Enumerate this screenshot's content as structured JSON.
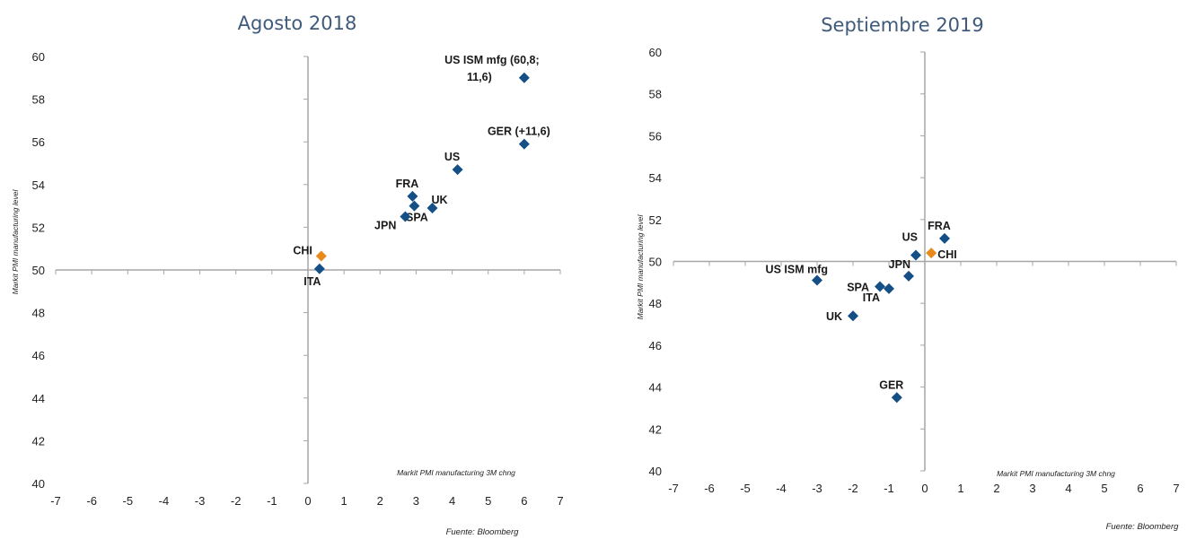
{
  "chart_data": [
    {
      "type": "scatter",
      "title": "Agosto 2018",
      "xlabel": "Markit PMI manufacturing 3M chng",
      "ylabel": "Markit PMI manufacturing level",
      "source": "Fuente: Bloomberg",
      "xlim": [
        -7,
        7
      ],
      "ylim": [
        40,
        60
      ],
      "xticks": [
        "-7",
        "-6",
        "-5",
        "-4",
        "-3",
        "-2",
        "-1",
        "0",
        "1",
        "2",
        "3",
        "4",
        "5",
        "6",
        "7"
      ],
      "yticks": [
        "40",
        "42",
        "44",
        "46",
        "48",
        "50",
        "52",
        "54",
        "56",
        "58",
        "60"
      ],
      "grid": false,
      "colors": {
        "default": "#144f86",
        "highlight": "#e8891c",
        "title": "#3f5a7a"
      },
      "points": [
        {
          "label": "US ISM mfg (60,8;",
          "label2": "11,6)",
          "x": 6.0,
          "y": 59.0,
          "highlight": false,
          "lp": "ul"
        },
        {
          "label": "GER (+11,6)",
          "x": 6.0,
          "y": 55.9,
          "highlight": false,
          "lp": "above"
        },
        {
          "label": "US",
          "x": 4.15,
          "y": 54.7,
          "highlight": false,
          "lp": "above"
        },
        {
          "label": "FRA",
          "x": 2.9,
          "y": 53.45,
          "highlight": false,
          "lp": "above"
        },
        {
          "label": "SPA",
          "x": 2.95,
          "y": 53.0,
          "highlight": false,
          "lp": "sbelow"
        },
        {
          "label": "UK",
          "x": 3.45,
          "y": 52.9,
          "highlight": false,
          "lp": "ur"
        },
        {
          "label": "JPN",
          "x": 2.7,
          "y": 52.5,
          "highlight": false,
          "lp": "bl"
        },
        {
          "label": "CHI",
          "x": 0.37,
          "y": 50.65,
          "highlight": true,
          "lp": "ul"
        },
        {
          "label": "ITA",
          "x": 0.32,
          "y": 50.05,
          "highlight": false,
          "lp": "below"
        }
      ]
    },
    {
      "type": "scatter",
      "title": "Septiembre 2019",
      "xlabel": "Markit PMI manufacturing 3M chng",
      "ylabel": "Markit PMI manufacturing level",
      "source": "Fuente: Bloomberg",
      "xlim": [
        -7,
        7
      ],
      "ylim": [
        40,
        60
      ],
      "xticks": [
        "-7",
        "-6",
        "-5",
        "-4",
        "-3",
        "-2",
        "-1",
        "0",
        "1",
        "2",
        "3",
        "4",
        "5",
        "6",
        "7"
      ],
      "yticks": [
        "40",
        "42",
        "44",
        "46",
        "48",
        "50",
        "52",
        "54",
        "56",
        "58",
        "60"
      ],
      "grid": false,
      "colors": {
        "default": "#144f86",
        "highlight": "#e8891c",
        "title": "#3f5a7a"
      },
      "points": [
        {
          "label": "FRA",
          "x": 0.55,
          "y": 51.1,
          "highlight": false,
          "lp": "above"
        },
        {
          "label": "CHI",
          "x": 0.18,
          "y": 50.4,
          "highlight": true,
          "lp": "right"
        },
        {
          "label": "US",
          "x": -0.25,
          "y": 50.3,
          "highlight": false,
          "lp": "ul"
        },
        {
          "label": "JPN",
          "x": -0.45,
          "y": 49.3,
          "highlight": false,
          "lp": "ul"
        },
        {
          "label": "US ISM mfg",
          "x": -3.0,
          "y": 49.1,
          "highlight": false,
          "lp": "ul"
        },
        {
          "label": "SPA",
          "x": -1.25,
          "y": 48.8,
          "highlight": false,
          "lp": "left"
        },
        {
          "label": "ITA",
          "x": -1.0,
          "y": 48.7,
          "highlight": false,
          "lp": "bl"
        },
        {
          "label": "UK",
          "x": -2.0,
          "y": 47.4,
          "highlight": false,
          "lp": "left"
        },
        {
          "label": "GER",
          "x": -0.78,
          "y": 43.5,
          "highlight": false,
          "lp": "above"
        }
      ]
    }
  ]
}
